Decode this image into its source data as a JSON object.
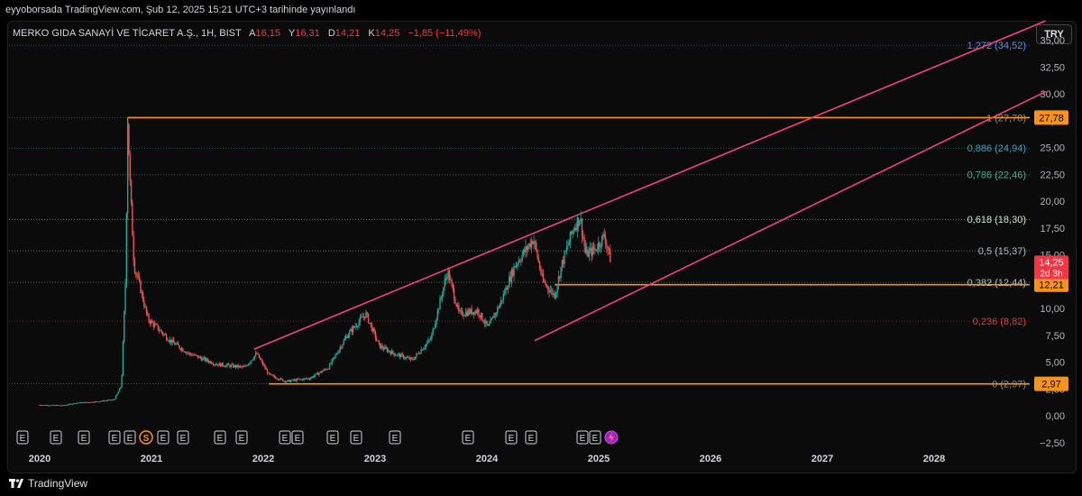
{
  "header": {
    "published": "eyyoborsada TradingView.com, Şub 12, 2025 15:21 UTC+3 tarihinde yayınlandı"
  },
  "symbol": {
    "name": "MERKO GIDA SANAYİ VE TİCARET A.Ş., 1H, BIST",
    "open_label": "A",
    "open": "16,15",
    "high_label": "Y",
    "high": "16,31",
    "low_label": "D",
    "low": "14,21",
    "close_label": "K",
    "close": "14,25",
    "change": "−1,85 (−11,49%)"
  },
  "currency_button": "TRY",
  "footer": {
    "brand": "TradingView"
  },
  "colors": {
    "up": "#26a69a",
    "down": "#ef5350",
    "channel": "#f0447a",
    "horizontal": "#f7931a",
    "price_tag": "#f23645",
    "grid": "#1a1a1a"
  },
  "chart_data": {
    "type": "candlestick",
    "instrument": "MERKO",
    "timeframe": "1H",
    "ylim": [
      -3.5,
      37.5
    ],
    "x_ticks": [
      "2020",
      "2021",
      "2022",
      "2023",
      "2024",
      "2025",
      "2026",
      "2027",
      "2028"
    ],
    "y_ticks": [
      "35,00",
      "32,50",
      "30,00",
      "27,50",
      "25,00",
      "22,50",
      "20,00",
      "17,50",
      "15,00",
      "12,50",
      "10,00",
      "7,50",
      "5,00",
      "2,50",
      "0,00",
      "−2,50"
    ],
    "y_tick_values": [
      35,
      32.5,
      30,
      27.5,
      25,
      22.5,
      20,
      17.5,
      15,
      12.5,
      10,
      7.5,
      5,
      2.5,
      0,
      -2.5
    ],
    "fibonacci": [
      {
        "label": "1,272 (34,52)",
        "value": 34.52,
        "color": "#5b8def"
      },
      {
        "label": "1 (27,78)",
        "value": 27.78,
        "color": "#888888"
      },
      {
        "label": "0,886 (24,94)",
        "value": 24.94,
        "color": "#3aa5b8"
      },
      {
        "label": "0,786 (22,46)",
        "value": 22.46,
        "color": "#4caf8a"
      },
      {
        "label": "0,618 (18,30)",
        "value": 18.3,
        "color": "#c8e6c9"
      },
      {
        "label": "0,5 (15,37)",
        "value": 15.37,
        "color": "#b0bec5"
      },
      {
        "label": "0,382 (12,44)",
        "value": 12.44,
        "color": "#b0bec5"
      },
      {
        "label": "0,236 (8,82)",
        "value": 8.82,
        "color": "#e53935"
      },
      {
        "label": "0 (2,97)",
        "value": 2.97,
        "color": "#888888"
      }
    ],
    "horizontal_levels": [
      {
        "label": "27,78",
        "value": 27.78
      },
      {
        "label": "12,21",
        "value": 12.21
      },
      {
        "label": "2,97",
        "value": 2.97
      }
    ],
    "current_price": {
      "label": "14,25",
      "countdown": "2d 3h",
      "value": 14.25
    },
    "channel": {
      "upper": {
        "start": [
          "2021-12-01",
          6.2
        ],
        "end": [
          "2028-12-31",
          36.8
        ]
      },
      "lower": {
        "start": [
          "2024-06-05",
          7.0
        ],
        "end": [
          "2028-12-31",
          30.2
        ]
      }
    },
    "events": [
      "E",
      "E",
      "E",
      "E",
      "E",
      "S",
      "E",
      "E",
      "E",
      "E",
      "E",
      "E",
      "E",
      "E",
      "E",
      "E",
      "E",
      "E",
      "E",
      "E",
      "E"
    ],
    "price_path": [
      [
        "2020-01-01",
        1.0
      ],
      [
        "2020-03-15",
        0.95
      ],
      [
        "2020-05-01",
        1.2
      ],
      [
        "2020-07-01",
        1.3
      ],
      [
        "2020-09-01",
        1.5
      ],
      [
        "2020-09-25",
        2.8
      ],
      [
        "2020-10-08",
        13
      ],
      [
        "2020-10-15",
        27.78
      ],
      [
        "2020-10-22",
        22
      ],
      [
        "2020-11-05",
        14
      ],
      [
        "2020-11-25",
        12
      ],
      [
        "2020-12-20",
        9
      ],
      [
        "2021-01-20",
        8.2
      ],
      [
        "2021-03-01",
        7.0
      ],
      [
        "2021-05-01",
        5.8
      ],
      [
        "2021-08-01",
        4.8
      ],
      [
        "2021-11-01",
        4.5
      ],
      [
        "2021-12-10",
        5.8
      ],
      [
        "2022-01-20",
        3.8
      ],
      [
        "2022-03-15",
        3.2
      ],
      [
        "2022-06-01",
        3.5
      ],
      [
        "2022-08-01",
        4.5
      ],
      [
        "2022-10-01",
        7.5
      ],
      [
        "2022-12-01",
        9.5
      ],
      [
        "2023-01-15",
        6.5
      ],
      [
        "2023-03-01",
        5.8
      ],
      [
        "2023-05-01",
        5.2
      ],
      [
        "2023-07-01",
        7.2
      ],
      [
        "2023-08-25",
        13.5
      ],
      [
        "2023-10-01",
        9.5
      ],
      [
        "2023-12-01",
        9.8
      ],
      [
        "2024-01-05",
        8.2
      ],
      [
        "2024-02-15",
        10.5
      ],
      [
        "2024-04-01",
        14
      ],
      [
        "2024-06-01",
        16.5
      ],
      [
        "2024-07-01",
        12.5
      ],
      [
        "2024-08-10",
        11.2
      ],
      [
        "2024-09-01",
        14
      ],
      [
        "2024-10-10",
        17.5
      ],
      [
        "2024-11-01",
        18.5
      ],
      [
        "2024-11-20",
        15
      ],
      [
        "2024-12-20",
        15.5
      ],
      [
        "2025-01-20",
        16.8
      ],
      [
        "2025-02-12",
        14.25
      ]
    ]
  }
}
